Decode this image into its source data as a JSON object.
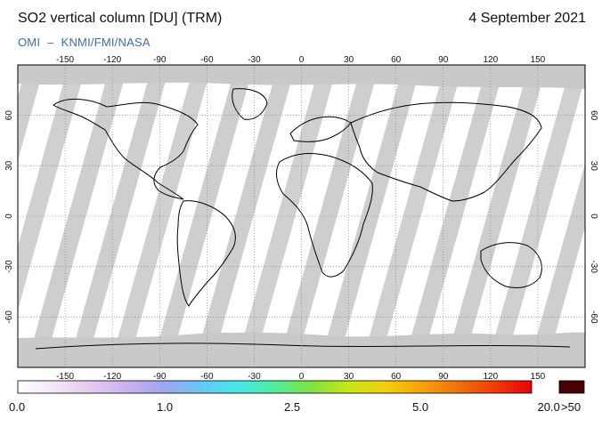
{
  "header": {
    "title": "SO2 vertical column [DU] (TRM)",
    "date": "4 September 2021",
    "credit_left": "OMI",
    "credit_sep": "–",
    "credit_right": "KNMI/FMI/NASA"
  },
  "map": {
    "lon_ticks": [
      "-150",
      "-120",
      "-90",
      "-60",
      "-30",
      "0",
      "30",
      "60",
      "90",
      "120",
      "150"
    ],
    "lat_ticks_left": [
      "60",
      "30",
      "0",
      "-30",
      "-60"
    ],
    "lat_ticks_right": [
      "60",
      "30",
      "0",
      "-30",
      "-60"
    ],
    "colors": {
      "no_data": "#c9c9c9",
      "dark_swath": "#a9a9a9",
      "land_outline": "#000000",
      "background": "#ffffff"
    }
  },
  "colorbar": {
    "labels": [
      "0.0",
      "1.0",
      "2.5",
      "5.0",
      "20.0"
    ],
    "overflow_label": ">50",
    "overflow_color": "#4a0000",
    "stops": [
      "#ffffff",
      "#f3e6f8",
      "#e6c8f1",
      "#c9b0f0",
      "#9ea6ef",
      "#66c8f5",
      "#48e8e6",
      "#53ee9c",
      "#7fe23f",
      "#c7e61b",
      "#f1d10a",
      "#f7a20b",
      "#f36f0c",
      "#ef3c0a",
      "#e6000a"
    ]
  }
}
